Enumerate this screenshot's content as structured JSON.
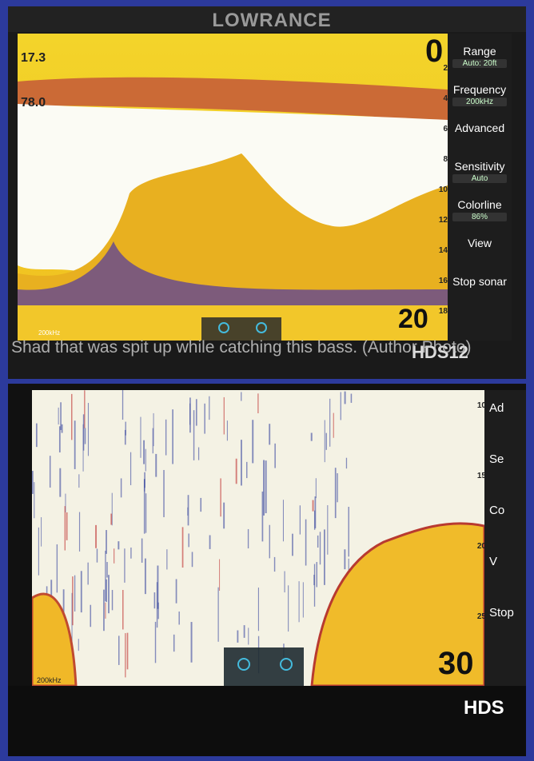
{
  "top_screen": {
    "brand": "LOWRANCE",
    "depth_reading": "17.3",
    "temp_reading": "78.0",
    "scale_top": "0",
    "scale_bottom": "20",
    "depth_ticks": [
      "2",
      "4",
      "6",
      "8",
      "10",
      "12",
      "14",
      "16",
      "18"
    ],
    "menu": [
      {
        "label": "Range",
        "value": "Auto: 20ft"
      },
      {
        "label": "Frequency",
        "value": "200kHz"
      },
      {
        "label": "Advanced"
      },
      {
        "label": "Sensitivity",
        "value": "Auto"
      },
      {
        "label": "Colorline",
        "value": "86%"
      },
      {
        "label": "View"
      },
      {
        "label": "Stop sonar"
      }
    ],
    "frequency": "200kHz",
    "model": "HDS12"
  },
  "caption": "Shad that was spit up while catching this bass. (Author Photo)",
  "bottom_screen": {
    "depth_ticks": [
      "10",
      "15",
      "20",
      "25"
    ],
    "scale_bottom": "30",
    "menu": [
      "Ad",
      "Se",
      "Co",
      "V",
      "Stop"
    ],
    "frequency": "200kHz",
    "model": "HDS"
  }
}
